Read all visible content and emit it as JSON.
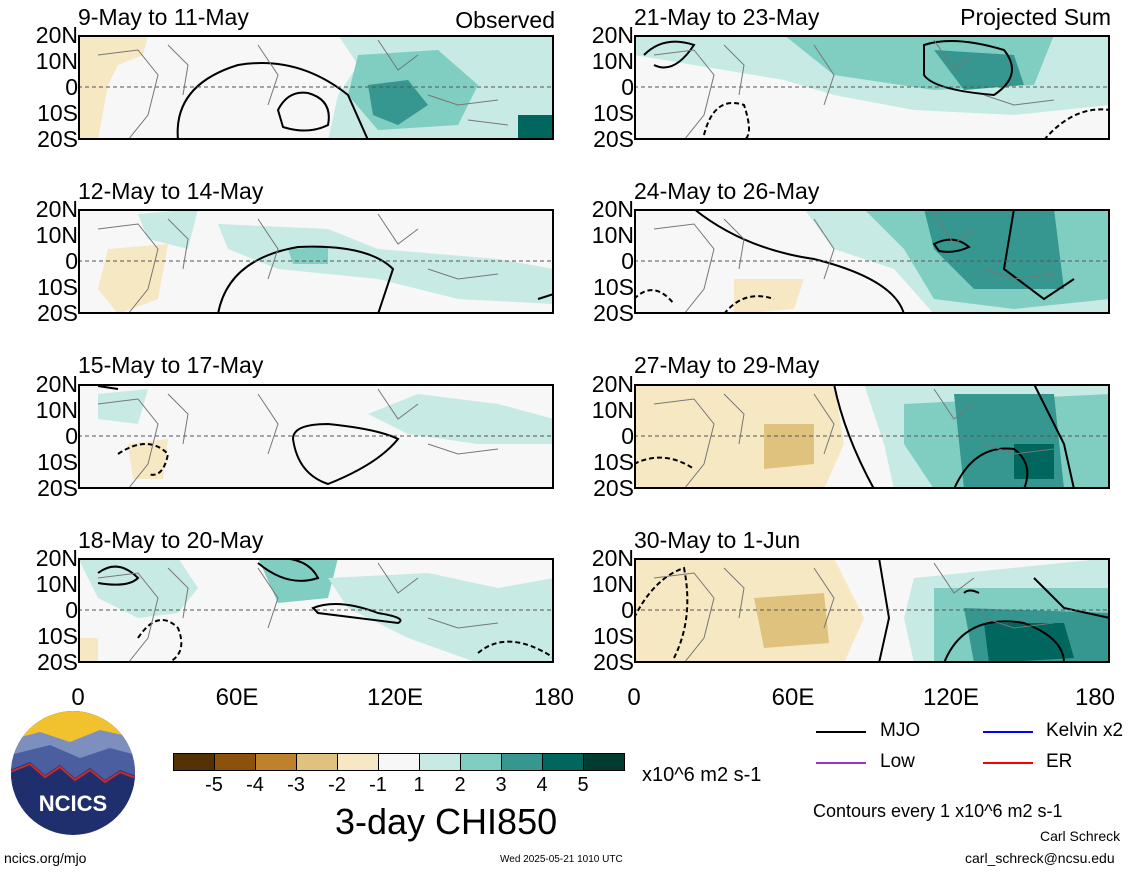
{
  "panels": [
    {
      "title": "9-May to 11-May",
      "tag": "Observed"
    },
    {
      "title": "12-May to 14-May",
      "tag": ""
    },
    {
      "title": "15-May to 17-May",
      "tag": ""
    },
    {
      "title": "18-May to 20-May",
      "tag": ""
    },
    {
      "title": "21-May to 23-May",
      "tag": "Projected Sum"
    },
    {
      "title": "24-May to 26-May",
      "tag": ""
    },
    {
      "title": "27-May to 29-May",
      "tag": ""
    },
    {
      "title": "30-May to 1-Jun",
      "tag": ""
    }
  ],
  "lat_labels": [
    "20N",
    "10N",
    "0",
    "10S",
    "20S"
  ],
  "lon_labels": [
    "0",
    "60E",
    "120E",
    "180"
  ],
  "colorbar": {
    "colors": [
      "#543005",
      "#8c510a",
      "#bf812d",
      "#dfc27d",
      "#f6e8c3",
      "#f7f7f7",
      "#c7eae5",
      "#80cdc1",
      "#35978f",
      "#01665e",
      "#003c30"
    ],
    "labels": [
      "-5",
      "-4",
      "-3",
      "-2",
      "-1",
      "1",
      "2",
      "3",
      "4",
      "5"
    ],
    "units": "x10^6 m2 s-1"
  },
  "main_title": "3-day CHI850",
  "legend": [
    {
      "label": "MJO",
      "color": "#000000"
    },
    {
      "label": "Kelvin x2",
      "color": "#0000ff"
    },
    {
      "label": "Low",
      "color": "#9933cc"
    },
    {
      "label": "ER",
      "color": "#ff0000"
    }
  ],
  "contour_note": "Contours every 1 x10^6 m2 s-1",
  "author": "Carl Schreck",
  "email": "carl_schreck@ncsu.edu",
  "site": "ncics.org/mjo",
  "timestamp": "Wed 2025-05-21 1010 UTC",
  "logo_text": "NCICS"
}
